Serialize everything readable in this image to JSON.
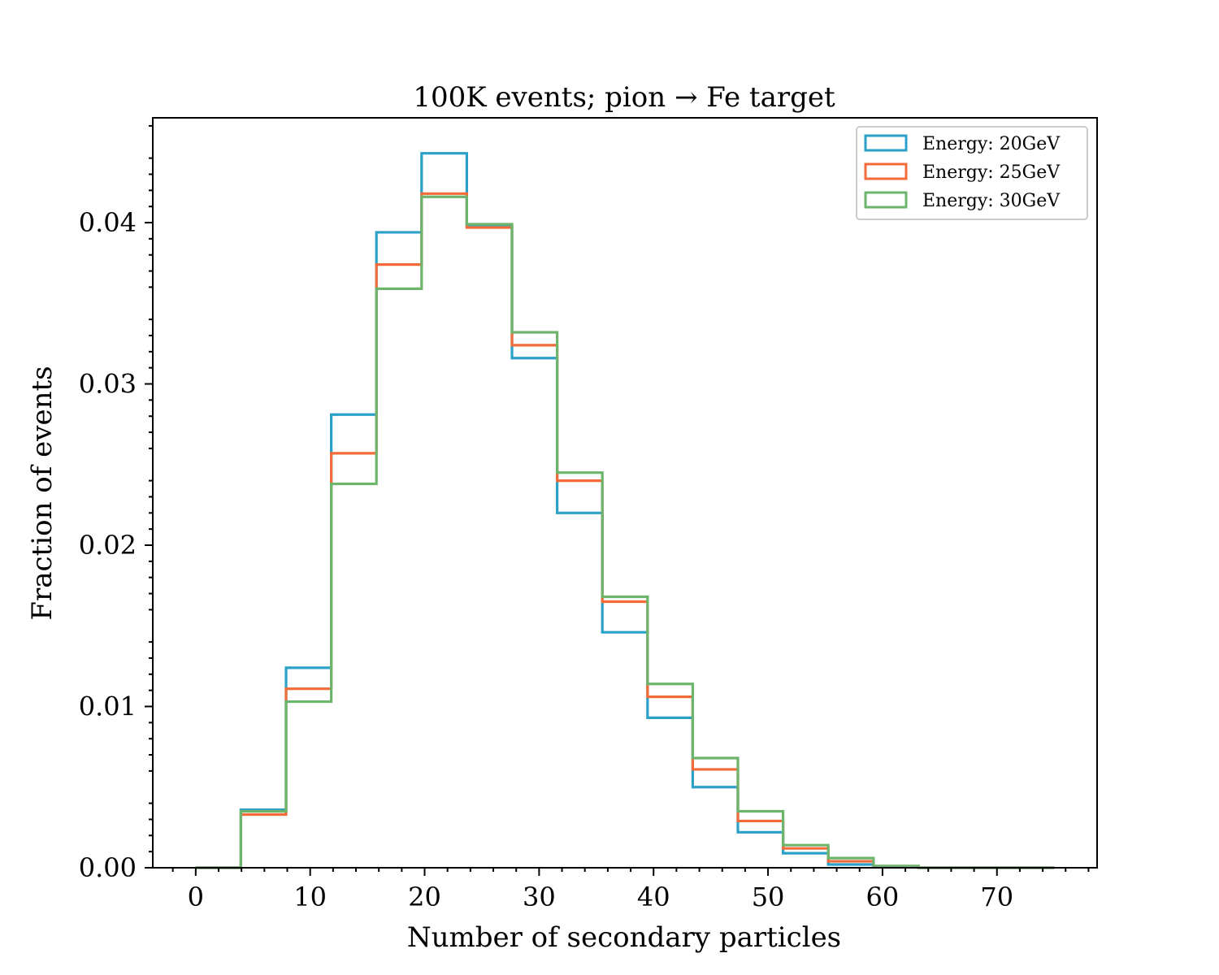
{
  "chart_data": {
    "type": "histogram",
    "title": "100K events; pion → Fe target",
    "xlabel": "Number of secondary particles",
    "ylabel": "Fraction of events",
    "xlim": [
      -3.75,
      78.75
    ],
    "ylim": [
      0,
      0.0465
    ],
    "xticks": [
      0,
      10,
      20,
      30,
      40,
      50,
      60,
      70
    ],
    "xtick_labels": [
      "0",
      "10",
      "20",
      "30",
      "40",
      "50",
      "60",
      "70"
    ],
    "yticks": [
      0,
      0.01,
      0.02,
      0.03,
      0.04
    ],
    "ytick_labels": [
      "0.00",
      "0.01",
      "0.02",
      "0.03",
      "0.04"
    ],
    "bin_edges": [
      0,
      3.947,
      7.895,
      11.842,
      15.789,
      19.737,
      23.684,
      27.632,
      31.579,
      35.526,
      39.474,
      43.421,
      47.368,
      51.316,
      55.263,
      59.211,
      63.158,
      67.105,
      71.053,
      75
    ],
    "legend_position": "upper-right",
    "series": [
      {
        "name": "Energy: 20GeV",
        "color": "#2ca1c8",
        "values": [
          0,
          0.0036,
          0.0124,
          0.0281,
          0.0394,
          0.0443,
          0.0398,
          0.0316,
          0.022,
          0.0146,
          0.0093,
          0.005,
          0.0022,
          0.0009,
          0.0002,
          0.0001,
          0,
          0,
          0
        ]
      },
      {
        "name": "Energy: 25GeV",
        "color": "#f26b38",
        "values": [
          0,
          0.0033,
          0.0111,
          0.0257,
          0.0374,
          0.0418,
          0.0397,
          0.0324,
          0.024,
          0.0165,
          0.0106,
          0.0061,
          0.0029,
          0.0012,
          0.0004,
          0.0001,
          0,
          0,
          0
        ]
      },
      {
        "name": "Energy: 30GeV",
        "color": "#6db56d",
        "values": [
          0,
          0.0035,
          0.0103,
          0.0238,
          0.0359,
          0.0416,
          0.0399,
          0.0332,
          0.0245,
          0.0168,
          0.0114,
          0.0068,
          0.0035,
          0.0014,
          0.0006,
          0.0001,
          0,
          0,
          0
        ]
      }
    ]
  }
}
